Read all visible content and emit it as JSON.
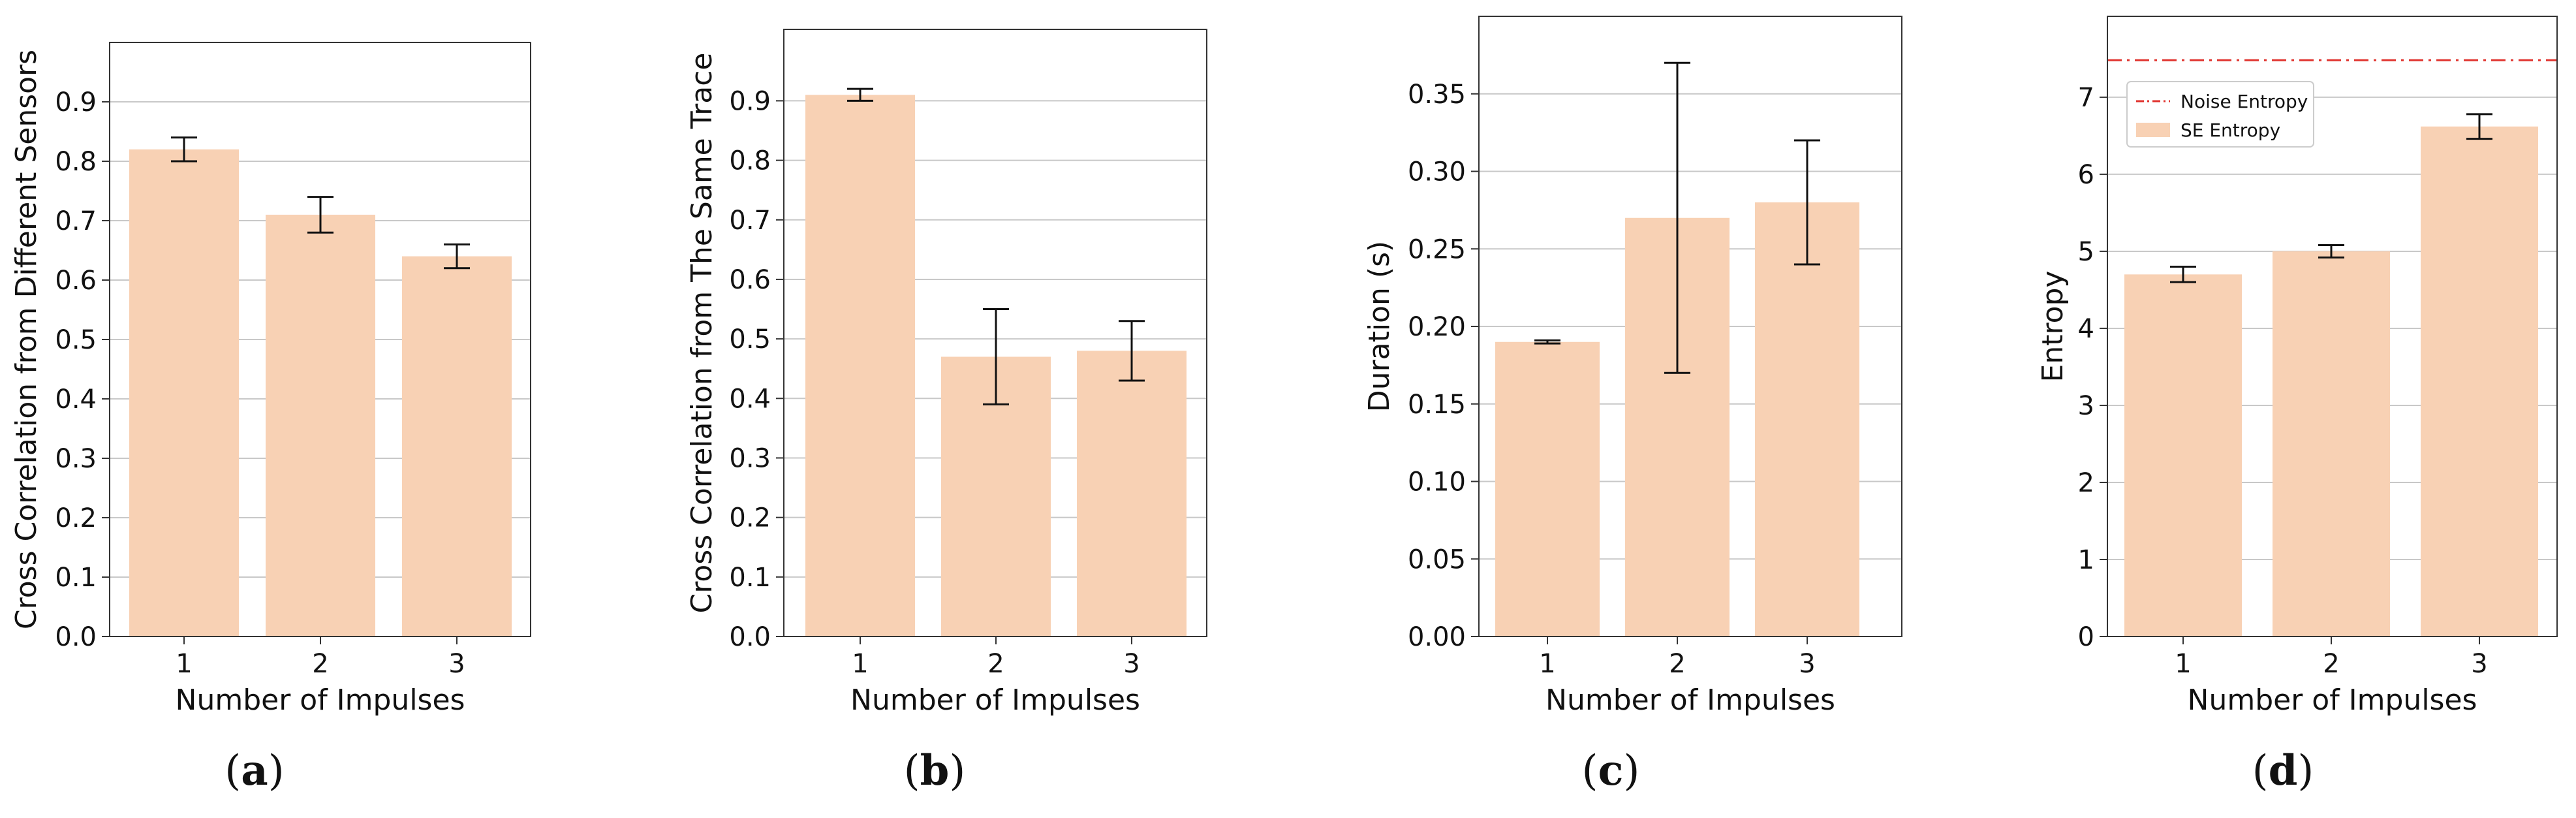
{
  "colors": {
    "bar": "#f8d1b4",
    "grid": "#c8c8c8",
    "axis": "#333333",
    "errorbar": "#111111",
    "noise": "#e0322d"
  },
  "chart_data": [
    {
      "type": "bar",
      "caption_open": "(",
      "caption": "a",
      "caption_close": ")",
      "categories": [
        "1",
        "2",
        "3"
      ],
      "values": [
        0.82,
        0.71,
        0.64
      ],
      "error_low": [
        0.8,
        0.68,
        0.62
      ],
      "error_high": [
        0.84,
        0.74,
        0.66
      ],
      "xlabel": "Number of Impulses",
      "ylabel": "Cross Correlation from Different Sensors",
      "ylim": [
        0,
        1.0
      ],
      "yticks": [
        0.0,
        0.1,
        0.2,
        0.3,
        0.4,
        0.5,
        0.6,
        0.7,
        0.8,
        0.9
      ],
      "ytick_labels": [
        "0.0",
        "0.1",
        "0.2",
        "0.3",
        "0.4",
        "0.5",
        "0.6",
        "0.7",
        "0.8",
        "0.9"
      ],
      "grid": true
    },
    {
      "type": "bar",
      "caption_open": "(",
      "caption": "b",
      "caption_close": ")",
      "categories": [
        "1",
        "2",
        "3"
      ],
      "values": [
        0.91,
        0.47,
        0.48
      ],
      "error_low": [
        0.9,
        0.39,
        0.43
      ],
      "error_high": [
        0.92,
        0.55,
        0.53
      ],
      "xlabel": "Number of Impulses",
      "ylabel": "Cross Correlation from The Same Trace",
      "ylim": [
        0,
        1.02
      ],
      "yticks": [
        0.0,
        0.1,
        0.2,
        0.3,
        0.4,
        0.5,
        0.6,
        0.7,
        0.8,
        0.9
      ],
      "ytick_labels": [
        "0.0",
        "0.1",
        "0.2",
        "0.3",
        "0.4",
        "0.5",
        "0.6",
        "0.7",
        "0.8",
        "0.9"
      ],
      "grid": true
    },
    {
      "type": "bar",
      "caption_open": "(",
      "caption": "c",
      "caption_close": ")",
      "categories": [
        "1",
        "2",
        "3"
      ],
      "values": [
        0.19,
        0.27,
        0.28
      ],
      "error_low": [
        0.189,
        0.17,
        0.24
      ],
      "error_high": [
        0.191,
        0.37,
        0.32
      ],
      "xlabel": "Number of Impulses",
      "ylabel": "Duration (s)",
      "ylim": [
        0,
        0.4
      ],
      "yticks": [
        0.0,
        0.05,
        0.1,
        0.15,
        0.2,
        0.25,
        0.3,
        0.35
      ],
      "ytick_labels": [
        "0.00",
        "0.05",
        "0.10",
        "0.15",
        "0.20",
        "0.25",
        "0.30",
        "0.35"
      ],
      "grid": true
    },
    {
      "type": "bar",
      "caption_open": "(",
      "caption": "d",
      "caption_close": ")",
      "categories": [
        "1",
        "2",
        "3"
      ],
      "values": [
        4.7,
        5.0,
        6.62
      ],
      "error_low": [
        4.6,
        4.92,
        6.46
      ],
      "error_high": [
        4.8,
        5.08,
        6.78
      ],
      "xlabel": "Number of Impulses",
      "ylabel": "Entropy",
      "ylim": [
        0,
        8.05
      ],
      "yticks": [
        0,
        1,
        2,
        3,
        4,
        5,
        6,
        7
      ],
      "ytick_labels": [
        "0",
        "1",
        "2",
        "3",
        "4",
        "5",
        "6",
        "7"
      ],
      "grid": true,
      "reference_line": {
        "name": "Noise Entropy",
        "value": 7.48,
        "style": "dash-dot"
      },
      "legend": {
        "placement": "upper-left",
        "entries": [
          {
            "label": "Noise Entropy",
            "kind": "line"
          },
          {
            "label": "SE Entropy",
            "kind": "bar"
          }
        ]
      }
    }
  ]
}
